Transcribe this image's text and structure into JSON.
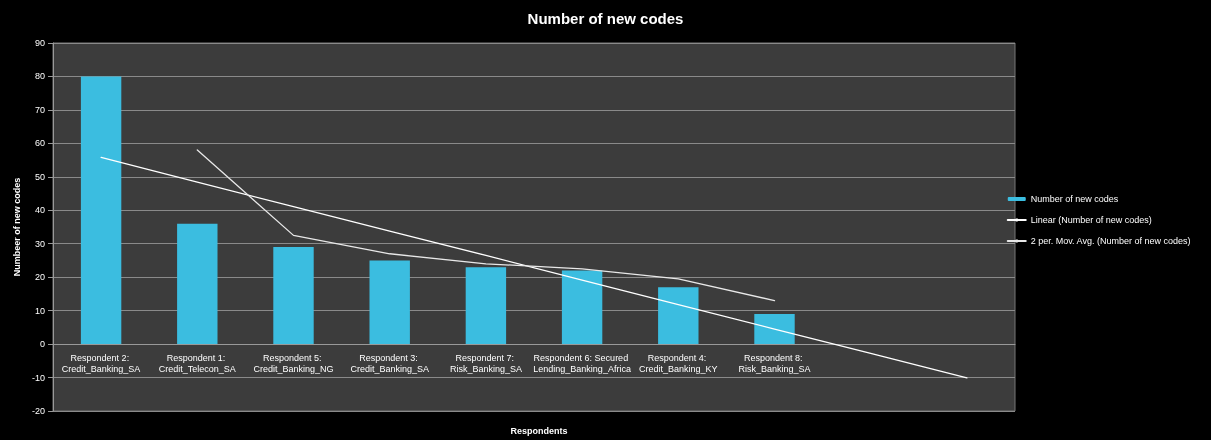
{
  "chart_data": {
    "type": "bar",
    "title": "Number of new codes",
    "xlabel": "Respondents",
    "ylabel": "Numbeer of new codes",
    "categories": [
      "Respondent 2: Credit_Banking_SA",
      "Respondent 1: Credit_Telecon_SA",
      "Respondent 5: Credit_Banking_NG",
      "Respondent 3: Credit_Banking_SA",
      "Respondent 7: Risk_Banking_SA",
      "Respondent 6: Secured Lending_Banking_Africa",
      "Respondent 4: Credit_Banking_KY",
      "Respondent 8: Risk_Banking_SA",
      null,
      null
    ],
    "series": [
      {
        "name": "Number of new codes",
        "color": "#3bbde0",
        "values": [
          80,
          36,
          29,
          25,
          23,
          22,
          17,
          9,
          null,
          null
        ]
      },
      {
        "name": "Linear (Number of new codes)",
        "type": "line",
        "color": "#ffffff",
        "values": [
          55.8,
          48.4,
          41.1,
          33.8,
          26.5,
          19.1,
          11.8,
          4.5,
          -2.8,
          -10.1
        ]
      },
      {
        "name": "2 per. Mov. Avg. (Number of new codes)",
        "type": "line",
        "color": "#e8e8e8",
        "values": [
          null,
          58,
          32.5,
          27,
          24,
          22.5,
          19.5,
          13,
          null,
          null
        ]
      }
    ],
    "ylim": [
      -20,
      90
    ],
    "yticks": [
      -20,
      -10,
      0,
      10,
      20,
      30,
      40,
      50,
      60,
      70,
      80,
      90
    ],
    "grid": "y",
    "legend": "right",
    "marker": "none",
    "line_style": "solid"
  }
}
